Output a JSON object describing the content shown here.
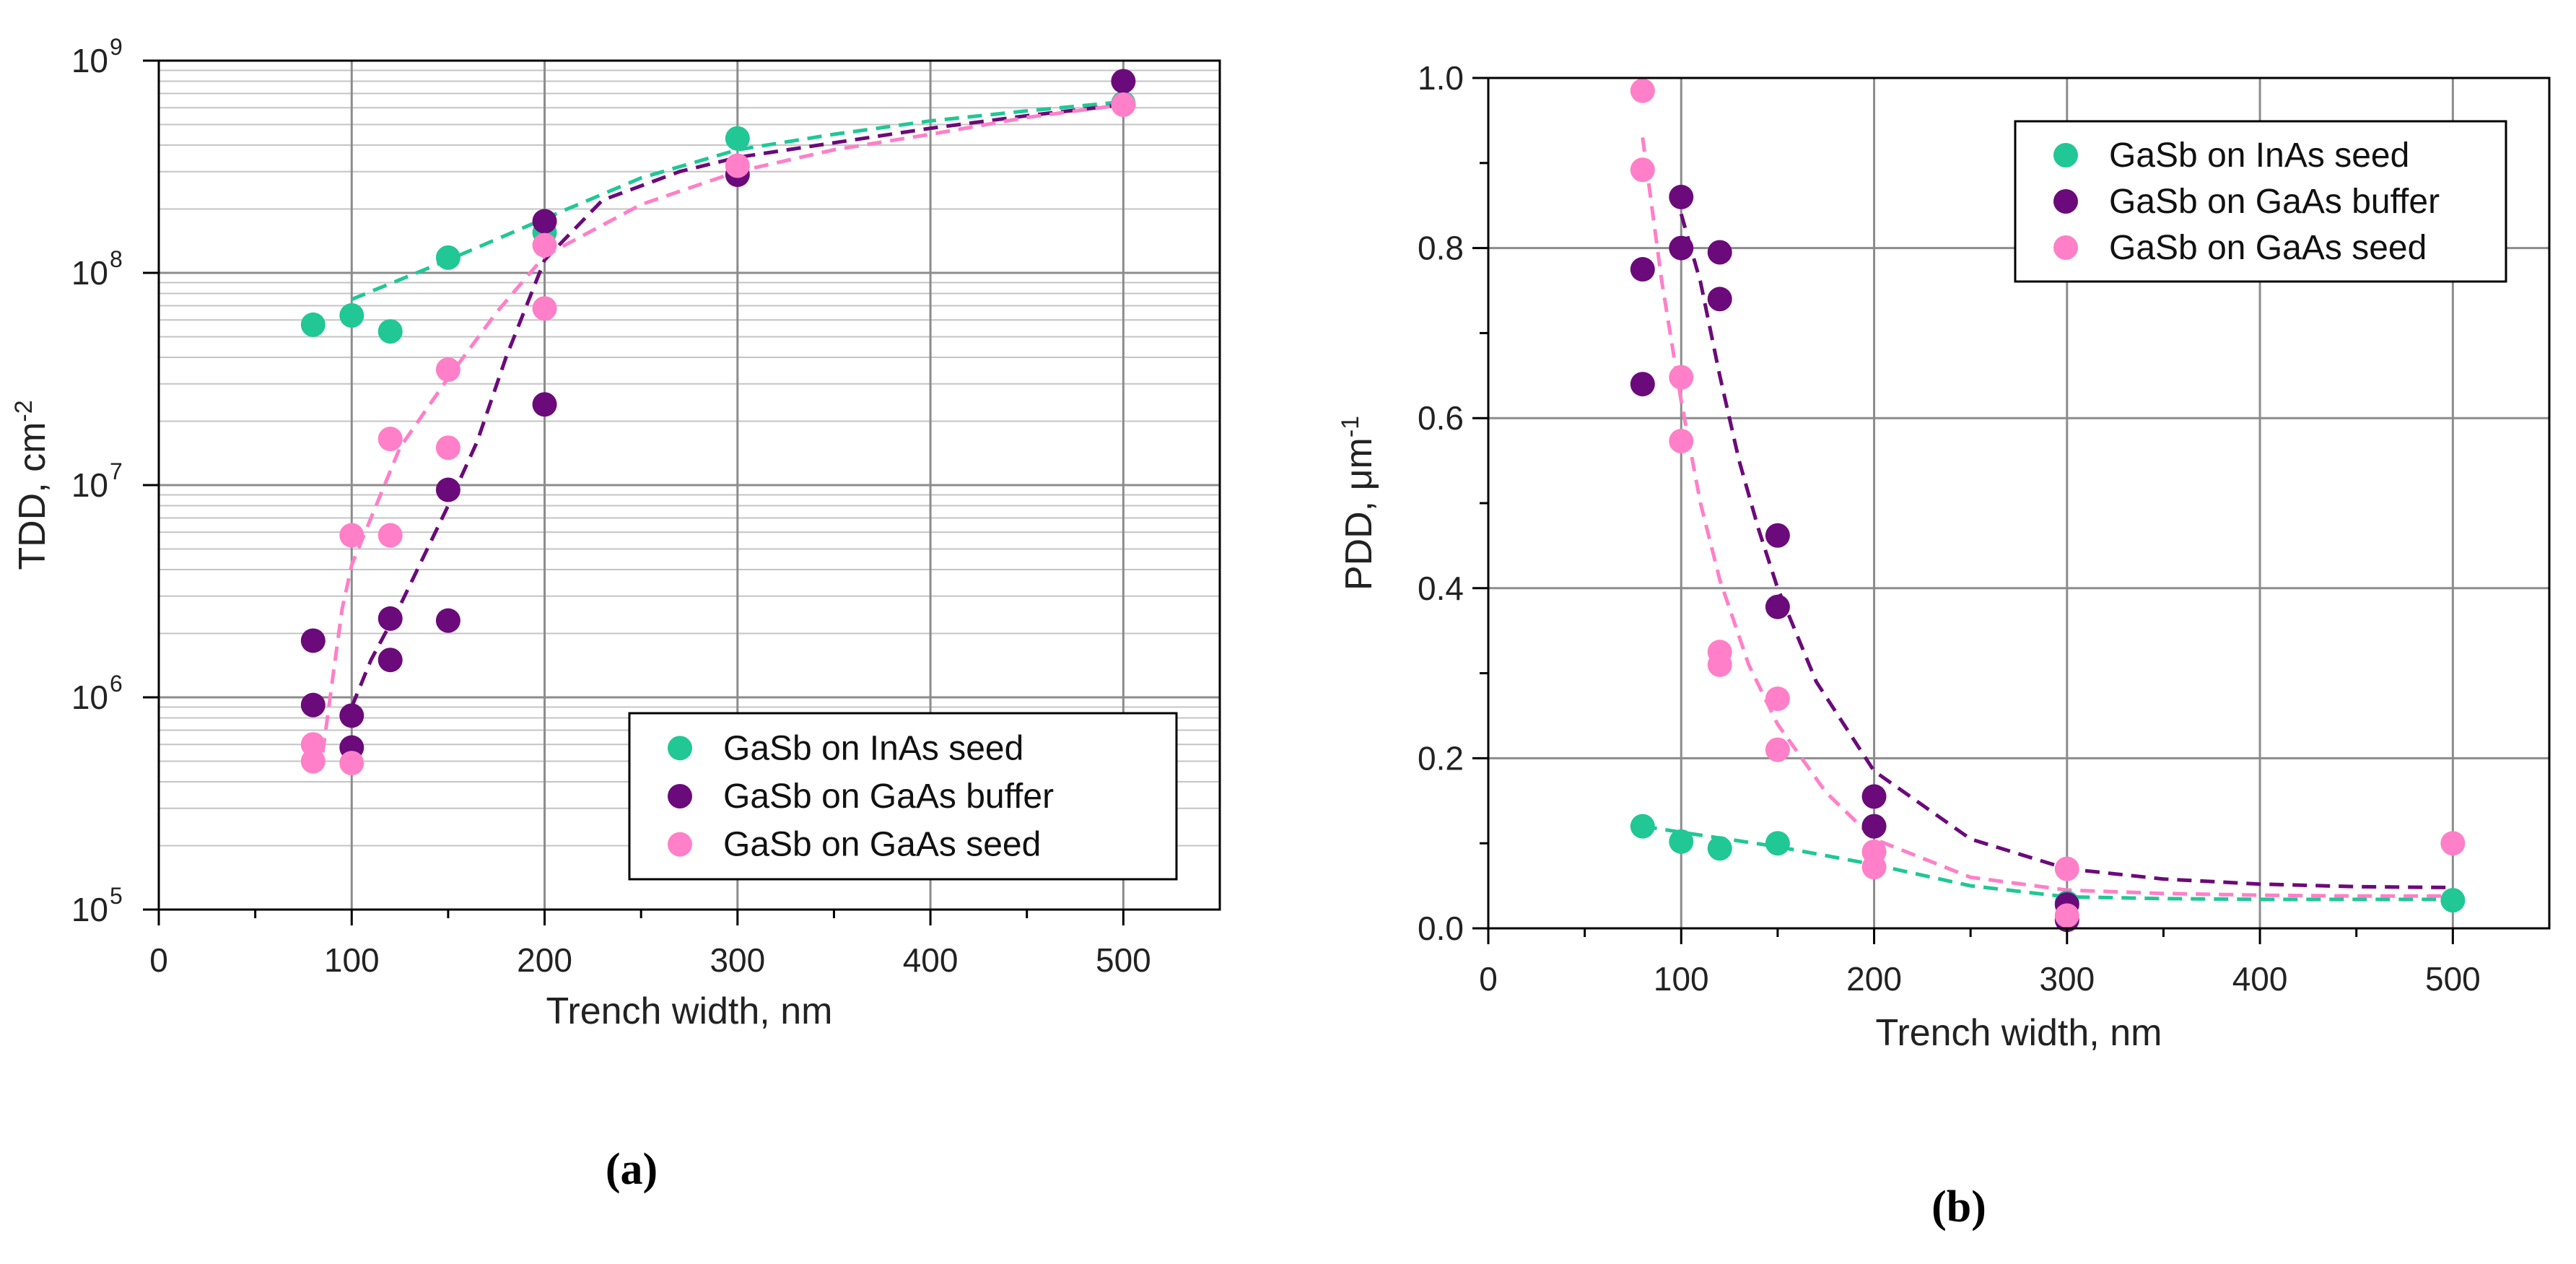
{
  "colors": {
    "inas_seed": "#21C795",
    "gaas_buffer": "#6B0A7A",
    "gaas_seed": "#FF7FC8",
    "grid": "#8C8C8C",
    "grid_minor": "#C4C4C4",
    "axis": "#000000"
  },
  "chart_data": [
    {
      "id": "a",
      "type": "scatter",
      "caption": "(a)",
      "xlabel": "Trench width, nm",
      "ylabel": "TDD, cm",
      "ylabel_sup": "-2",
      "yscale": "log",
      "xlim": [
        0,
        550
      ],
      "ylim": [
        100000,
        1000000000
      ],
      "xticks": [
        0,
        100,
        200,
        300,
        400,
        500
      ],
      "xtick_labels": [
        "0",
        "100",
        "200",
        "300",
        "400",
        "500"
      ],
      "yticks": [
        100000,
        1000000,
        10000000,
        100000000,
        1000000000
      ],
      "ytick_bases": [
        "10",
        "10",
        "10",
        "10",
        "10"
      ],
      "ytick_exps": [
        "5",
        "6",
        "7",
        "8",
        "9"
      ],
      "grid": true,
      "legend_position": "bottom-right",
      "series": [
        {
          "name": "GaSb on InAs seed",
          "color_key": "inas_seed",
          "points": [
            [
              80,
              57000000
            ],
            [
              100,
              63000000
            ],
            [
              120,
              53000000
            ],
            [
              150,
              118000000
            ],
            [
              200,
              155000000
            ],
            [
              300,
              430000000
            ],
            [
              500,
              630000000
            ]
          ],
          "fit": [
            [
              100,
              75000000
            ],
            [
              150,
              115000000
            ],
            [
              200,
              180000000
            ],
            [
              250,
              280000000
            ],
            [
              300,
              380000000
            ],
            [
              350,
              450000000
            ],
            [
              400,
              520000000
            ],
            [
              450,
              580000000
            ],
            [
              500,
              640000000
            ]
          ]
        },
        {
          "name": "GaSb on GaAs buffer",
          "color_key": "gaas_buffer",
          "points": [
            [
              80,
              1850000
            ],
            [
              80,
              920000
            ],
            [
              100,
              820000
            ],
            [
              100,
              580000
            ],
            [
              120,
              2350000
            ],
            [
              120,
              1500000
            ],
            [
              150,
              9500000
            ],
            [
              150,
              2300000
            ],
            [
              200,
              175000000
            ],
            [
              200,
              24000000
            ],
            [
              300,
              290000000
            ],
            [
              500,
              800000000
            ]
          ],
          "fit": [
            [
              100,
              900000
            ],
            [
              110,
              1500000
            ],
            [
              125,
              2700000
            ],
            [
              150,
              8000000
            ],
            [
              165,
              16000000
            ],
            [
              180,
              40000000
            ],
            [
              200,
              115000000
            ],
            [
              230,
              220000000
            ],
            [
              270,
              300000000
            ],
            [
              300,
              350000000
            ],
            [
              350,
              410000000
            ],
            [
              400,
              480000000
            ],
            [
              450,
              550000000
            ],
            [
              500,
              620000000
            ]
          ]
        },
        {
          "name": "GaSb on GaAs seed",
          "color_key": "gaas_seed",
          "points": [
            [
              80,
              600000
            ],
            [
              80,
              500000
            ],
            [
              100,
              5800000
            ],
            [
              100,
              490000
            ],
            [
              120,
              16500000
            ],
            [
              120,
              5800000
            ],
            [
              150,
              35000000
            ],
            [
              150,
              15000000
            ],
            [
              200,
              135000000
            ],
            [
              200,
              68000000
            ],
            [
              300,
              320000000
            ],
            [
              500,
              620000000
            ]
          ],
          "fit": [
            [
              85,
              550000
            ],
            [
              90,
              1200000
            ],
            [
              95,
              2600000
            ],
            [
              100,
              4200000
            ],
            [
              110,
              7000000
            ],
            [
              125,
              15000000
            ],
            [
              150,
              32000000
            ],
            [
              175,
              65000000
            ],
            [
              200,
              120000000
            ],
            [
              250,
              210000000
            ],
            [
              300,
              300000000
            ],
            [
              350,
              380000000
            ],
            [
              400,
              450000000
            ],
            [
              450,
              540000000
            ],
            [
              500,
              620000000
            ]
          ]
        }
      ]
    },
    {
      "id": "b",
      "type": "scatter",
      "caption": "(b)",
      "xlabel": "Trench width, nm",
      "ylabel": "PDD, μm",
      "ylabel_sup": "-1",
      "yscale": "linear",
      "xlim": [
        0,
        550
      ],
      "ylim": [
        0,
        1.0
      ],
      "xticks": [
        0,
        100,
        200,
        300,
        400,
        500
      ],
      "xtick_labels": [
        "0",
        "100",
        "200",
        "300",
        "400",
        "500"
      ],
      "yticks": [
        0,
        0.2,
        0.4,
        0.6,
        0.8,
        1.0
      ],
      "ytick_labels": [
        "0.0",
        "0.2",
        "0.4",
        "0.6",
        "0.8",
        "1.0"
      ],
      "grid": true,
      "legend_position": "top-right",
      "series": [
        {
          "name": "GaSb on InAs seed",
          "color_key": "inas_seed",
          "points": [
            [
              80,
              0.12
            ],
            [
              100,
              0.102
            ],
            [
              120,
              0.094
            ],
            [
              150,
              0.1
            ],
            [
              200,
              0.12
            ],
            [
              300,
              0.03
            ],
            [
              500,
              0.033
            ]
          ],
          "fit": [
            [
              80,
              0.12
            ],
            [
              100,
              0.113
            ],
            [
              150,
              0.096
            ],
            [
              200,
              0.075
            ],
            [
              250,
              0.05
            ],
            [
              300,
              0.037
            ],
            [
              350,
              0.035
            ],
            [
              400,
              0.034
            ],
            [
              450,
              0.034
            ],
            [
              500,
              0.034
            ]
          ]
        },
        {
          "name": "GaSb on GaAs buffer",
          "color_key": "gaas_buffer",
          "points": [
            [
              80,
              0.775
            ],
            [
              80,
              0.64
            ],
            [
              100,
              0.86
            ],
            [
              100,
              0.8
            ],
            [
              120,
              0.795
            ],
            [
              120,
              0.74
            ],
            [
              150,
              0.462
            ],
            [
              150,
              0.378
            ],
            [
              200,
              0.155
            ],
            [
              200,
              0.12
            ],
            [
              300,
              0.028
            ],
            [
              300,
              0.01
            ]
          ],
          "fit": [
            [
              100,
              0.84
            ],
            [
              110,
              0.76
            ],
            [
              120,
              0.65
            ],
            [
              130,
              0.55
            ],
            [
              140,
              0.47
            ],
            [
              150,
              0.4
            ],
            [
              170,
              0.29
            ],
            [
              200,
              0.185
            ],
            [
              250,
              0.105
            ],
            [
              300,
              0.07
            ],
            [
              350,
              0.058
            ],
            [
              400,
              0.052
            ],
            [
              450,
              0.049
            ],
            [
              500,
              0.048
            ]
          ]
        },
        {
          "name": "GaSb on GaAs seed",
          "color_key": "gaas_seed",
          "points": [
            [
              80,
              0.985
            ],
            [
              80,
              0.892
            ],
            [
              100,
              0.648
            ],
            [
              100,
              0.573
            ],
            [
              120,
              0.325
            ],
            [
              120,
              0.31
            ],
            [
              150,
              0.27
            ],
            [
              150,
              0.21
            ],
            [
              200,
              0.09
            ],
            [
              200,
              0.072
            ],
            [
              300,
              0.07
            ],
            [
              300,
              0.015
            ],
            [
              500,
              0.1
            ]
          ],
          "fit": [
            [
              80,
              0.93
            ],
            [
              90,
              0.76
            ],
            [
              100,
              0.62
            ],
            [
              110,
              0.5
            ],
            [
              120,
              0.41
            ],
            [
              135,
              0.31
            ],
            [
              150,
              0.24
            ],
            [
              175,
              0.16
            ],
            [
              200,
              0.105
            ],
            [
              250,
              0.06
            ],
            [
              300,
              0.045
            ],
            [
              350,
              0.041
            ],
            [
              400,
              0.039
            ],
            [
              450,
              0.038
            ],
            [
              500,
              0.038
            ]
          ]
        }
      ]
    }
  ]
}
